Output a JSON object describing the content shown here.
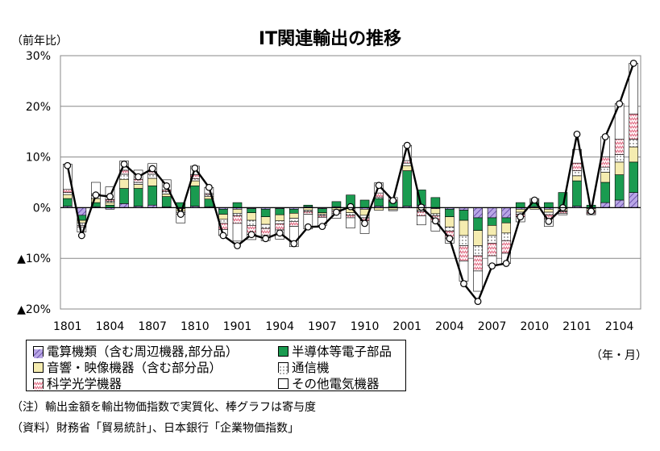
{
  "chart_data": {
    "type": "bar",
    "title": "IT関連輸出の推移",
    "ylabel": "（前年比）",
    "xlabel": "（年・月）",
    "ylim": [
      -20,
      30
    ],
    "yticks": [
      {
        "value": 30,
        "label": "30%"
      },
      {
        "value": 20,
        "label": "20%"
      },
      {
        "value": 10,
        "label": "10%"
      },
      {
        "value": 0,
        "label": "0%"
      },
      {
        "value": -10,
        "label": "▲10%"
      },
      {
        "value": -20,
        "label": "▲20%"
      }
    ],
    "grid": true,
    "stacked": true,
    "categories": [
      "1801",
      "1802",
      "1803",
      "1804",
      "1805",
      "1806",
      "1807",
      "1808",
      "1809",
      "1810",
      "1811",
      "1812",
      "1901",
      "1902",
      "1903",
      "1904",
      "1905",
      "1906",
      "1907",
      "1908",
      "1909",
      "1910",
      "1911",
      "1912",
      "2001",
      "2002",
      "2003",
      "2004",
      "2005",
      "2006",
      "2007",
      "2008",
      "2009",
      "2010",
      "2011",
      "2012",
      "2101",
      "2102",
      "2103",
      "2104",
      "2105"
    ],
    "xtick_labels": [
      "1801",
      "1804",
      "1807",
      "1810",
      "1901",
      "1904",
      "1907",
      "1910",
      "2001",
      "2004",
      "2007",
      "2010",
      "2101",
      "2104"
    ],
    "series": [
      {
        "name": "電算機類（含む周辺機器,部分品）",
        "type": "bar",
        "color": "#9b7fd1",
        "pattern": "diag",
        "values": [
          0.3,
          -1.5,
          0.2,
          -0.3,
          0.8,
          0.3,
          0.5,
          0.2,
          -0.2,
          0.3,
          0.2,
          -0.3,
          -0.3,
          -0.2,
          -0.3,
          -0.2,
          -0.3,
          0.2,
          -0.2,
          0.2,
          -0.2,
          -0.3,
          0.3,
          0.2,
          0.3,
          0.5,
          -0.2,
          -0.3,
          -0.5,
          -2.0,
          -2.0,
          -2.0,
          -0.3,
          0.2,
          -0.3,
          -0.2,
          0.3,
          -0.2,
          1.0,
          1.5,
          3.0
        ]
      },
      {
        "name": "半導体等電子部品",
        "type": "bar",
        "color": "#1a9b50",
        "values": [
          1.5,
          -1.0,
          0.8,
          0.5,
          3.0,
          3.5,
          3.8,
          2.0,
          1.0,
          4.0,
          1.5,
          -1.0,
          1.0,
          -0.8,
          -1.5,
          -1.2,
          -0.8,
          0.3,
          -0.8,
          1.0,
          2.5,
          1.5,
          1.5,
          1.0,
          7.0,
          3.0,
          2.0,
          -1.5,
          -2.0,
          -2.5,
          -1.5,
          -1.0,
          1.0,
          0.8,
          1.0,
          3.0,
          5.0,
          0.5,
          4.0,
          5.0,
          6.0
        ]
      },
      {
        "name": "音響・映像機器（含む部分品）",
        "type": "bar",
        "color": "#f5ecb0",
        "values": [
          0.8,
          -0.5,
          0.8,
          0.5,
          1.8,
          0.8,
          1.5,
          0.5,
          -0.5,
          1.0,
          0.5,
          -1.0,
          -0.8,
          -1.5,
          -1.5,
          -1.2,
          -1.0,
          -0.5,
          -0.3,
          -0.4,
          -0.8,
          -1.2,
          -0.5,
          -0.4,
          1.0,
          -0.5,
          -1.0,
          -2.0,
          -3.0,
          -3.0,
          -2.0,
          -2.0,
          -0.6,
          -0.3,
          -0.6,
          -0.4,
          1.0,
          -0.4,
          2.0,
          2.5,
          3.0
        ]
      },
      {
        "name": "通信機",
        "type": "bar",
        "color": "#ffffff",
        "pattern": "dots",
        "values": [
          0.4,
          -0.5,
          0.6,
          0.3,
          1.0,
          0.4,
          0.8,
          0.5,
          -0.3,
          0.4,
          0.3,
          -0.8,
          -0.5,
          -1.0,
          -0.8,
          -0.6,
          -0.6,
          -0.3,
          -0.3,
          -0.3,
          -0.5,
          -0.5,
          0.3,
          -0.2,
          0.5,
          -0.3,
          -0.4,
          -0.8,
          -2.0,
          -2.0,
          -1.5,
          -1.5,
          -0.4,
          0.2,
          -0.5,
          -0.2,
          1.0,
          -0.3,
          1.0,
          1.5,
          1.5
        ]
      },
      {
        "name": "科学光学機器",
        "type": "bar",
        "color": "#ffffff",
        "pattern": "zigzag",
        "values": [
          0.6,
          -0.3,
          0.3,
          0.3,
          0.8,
          0.6,
          0.5,
          0.3,
          -0.3,
          0.8,
          0.3,
          -1.2,
          -1.5,
          -1.8,
          -1.3,
          -1.2,
          -1.0,
          -0.5,
          -0.3,
          -0.4,
          -0.5,
          -0.6,
          0.8,
          0.3,
          0.5,
          -0.8,
          -1.2,
          -1.4,
          -3.0,
          -3.0,
          -2.5,
          -2.5,
          -0.5,
          0.3,
          -0.8,
          -0.3,
          1.5,
          -0.3,
          2.0,
          3.0,
          5.0
        ]
      },
      {
        "name": "その他電気機器",
        "type": "bar",
        "color": "#ffffff",
        "values": [
          5.0,
          -1.0,
          2.3,
          2.5,
          1.8,
          1.8,
          1.6,
          2.0,
          -1.7,
          1.7,
          1.2,
          -1.2,
          -3.5,
          -1.0,
          -1.1,
          -1.8,
          -4.0,
          -2.9,
          -1.6,
          -1.0,
          -2.0,
          -2.5,
          2.0,
          0.5,
          3.0,
          -1.8,
          -1.8,
          -1.0,
          -4.0,
          -4.0,
          -2.0,
          -2.0,
          -1.0,
          0.3,
          -1.5,
          -0.3,
          2.7,
          -0.2,
          4.0,
          7.0,
          10.0
        ]
      },
      {
        "name": "IT関連輸出",
        "type": "line",
        "color": "#000000",
        "values": [
          8.3,
          -5.5,
          2.5,
          2.2,
          8.6,
          6.1,
          7.7,
          4.3,
          -1.3,
          7.8,
          4.0,
          -5.5,
          -7.5,
          -5.3,
          -6.1,
          -5.0,
          -7.1,
          -3.8,
          -3.7,
          -0.9,
          0.2,
          -3.1,
          4.4,
          1.4,
          12.3,
          0.1,
          -2.6,
          -6.1,
          -15.0,
          -18.5,
          -11.5,
          -11.0,
          -1.8,
          1.5,
          -2.7,
          0.0,
          14.5,
          -0.7,
          14.0,
          20.5,
          28.5
        ]
      }
    ]
  },
  "notes": {
    "note1": "（注）輸出金額を輸出物価指数で実質化、棒グラフは寄与度",
    "note2": "（資料）財務省「貿易統計」、日本銀行「企業物価指数」"
  }
}
